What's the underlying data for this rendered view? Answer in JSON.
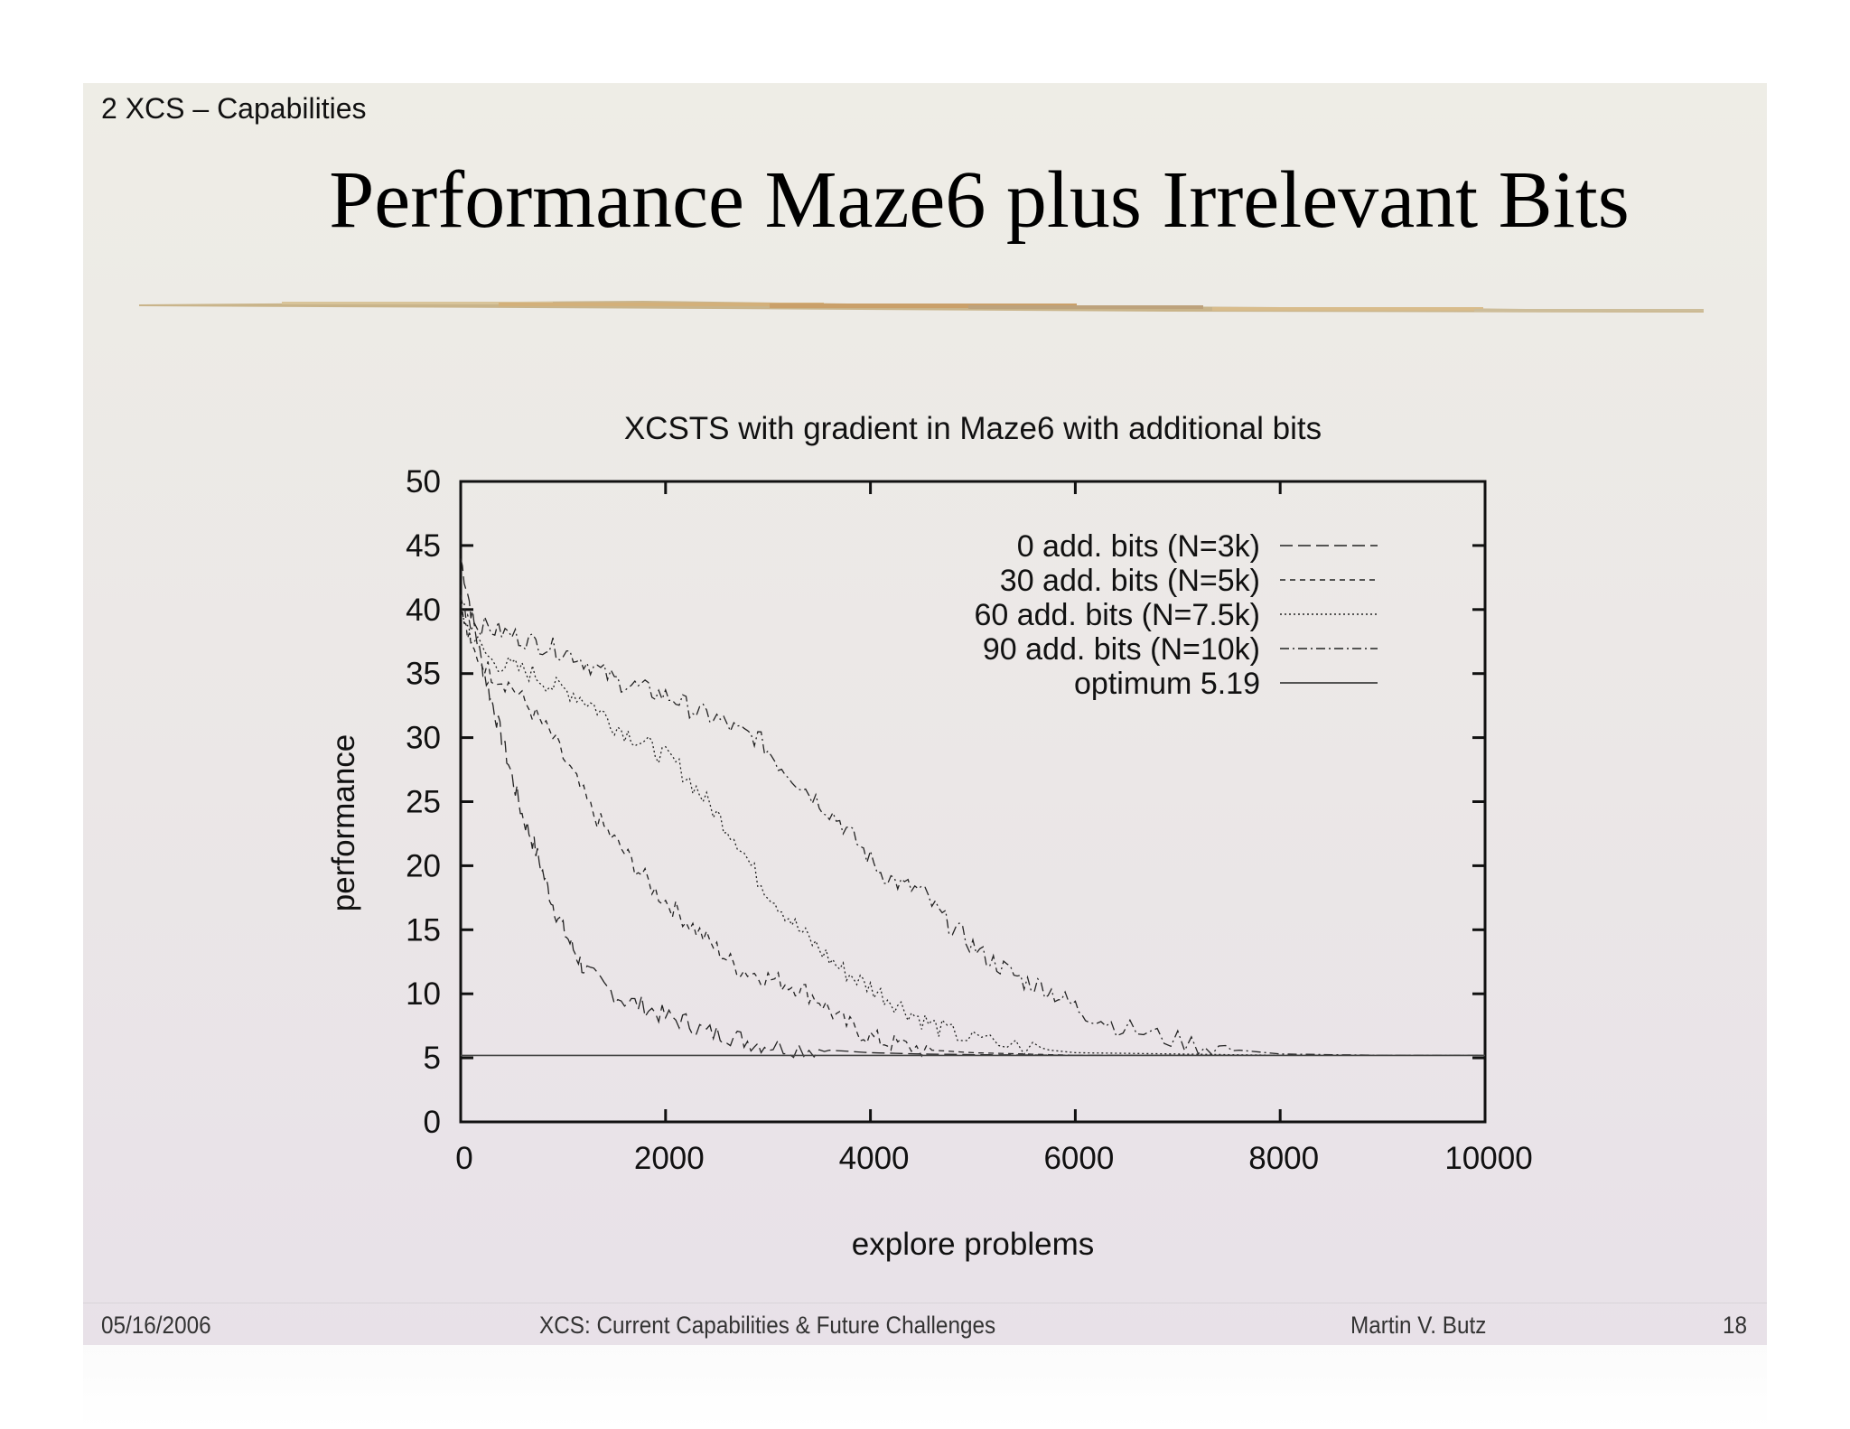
{
  "slide": {
    "section": "2 XCS – Capabilities",
    "title": "Performance Maze6 plus Irrelevant Bits",
    "footer": {
      "date": "05/16/2006",
      "center": "XCS: Current Capabilities & Future Challenges",
      "author": "Martin V. Butz",
      "page": "18"
    }
  },
  "colors": {
    "accent": "#c8a060",
    "line": "#222222"
  },
  "chart_data": {
    "type": "line",
    "title": "XCSTS with gradient in Maze6 with additional bits",
    "xlabel": "explore problems",
    "ylabel": "performance",
    "xlim": [
      0,
      10000
    ],
    "ylim": [
      0,
      50
    ],
    "xticks": [
      0,
      2000,
      4000,
      6000,
      8000,
      10000
    ],
    "yticks": [
      0,
      5,
      10,
      15,
      20,
      25,
      30,
      35,
      40,
      45,
      50
    ],
    "legend_position": "top-right",
    "series": [
      {
        "name": "0 add. bits (N=3k)",
        "dash": "14,6",
        "x": [
          0,
          100,
          200,
          300,
          400,
          500,
          600,
          700,
          800,
          900,
          1000,
          1100,
          1200,
          1400,
          1600,
          1800,
          2000,
          2200,
          2400,
          2600,
          2800,
          3000,
          3300,
          3600,
          4000,
          4500,
          5000,
          6000,
          7000,
          8000,
          9000,
          10000
        ],
        "y": [
          44,
          40,
          36,
          33,
          30,
          27,
          24,
          22,
          19.5,
          17,
          15,
          13.5,
          12,
          10.5,
          9.5,
          9,
          8.2,
          7.8,
          7,
          6.8,
          6.3,
          6,
          5.8,
          5.6,
          5.4,
          5.3,
          5.25,
          5.2,
          5.2,
          5.19,
          5.19,
          5.19
        ]
      },
      {
        "name": "30 add. bits (N=5k)",
        "dash": "6,5",
        "x": [
          0,
          100,
          300,
          500,
          700,
          900,
          1100,
          1300,
          1500,
          1700,
          1900,
          2100,
          2300,
          2500,
          2700,
          2900,
          3100,
          3300,
          3500,
          3700,
          3900,
          4100,
          4300,
          4600,
          5000,
          5500,
          6000,
          7000,
          8000,
          10000
        ],
        "y": [
          40,
          37,
          35,
          34,
          32,
          30,
          27,
          24,
          22,
          20,
          18,
          16.5,
          15,
          13.5,
          12,
          11.5,
          11,
          10.5,
          9.5,
          8,
          7,
          6.3,
          6,
          5.6,
          5.4,
          5.3,
          5.2,
          5.2,
          5.19,
          5.19
        ]
      },
      {
        "name": "60 add. bits (N=7.5k)",
        "dash": "2,3",
        "x": [
          0,
          100,
          300,
          500,
          700,
          900,
          1100,
          1300,
          1500,
          1700,
          1900,
          2100,
          2300,
          2500,
          2700,
          2900,
          3100,
          3300,
          3500,
          3700,
          3900,
          4100,
          4300,
          4500,
          4700,
          5000,
          5500,
          6000,
          7000,
          8000,
          10000
        ],
        "y": [
          40,
          38,
          36,
          35.5,
          35,
          34,
          33.5,
          32.5,
          31,
          30,
          29,
          28,
          26,
          24,
          22,
          19,
          17,
          15,
          13.5,
          12,
          11,
          10,
          9,
          8,
          7.2,
          6.4,
          5.8,
          5.4,
          5.3,
          5.2,
          5.19
        ]
      },
      {
        "name": "90 add. bits (N=10k)",
        "dash": "10,4,2,4",
        "x": [
          0,
          100,
          300,
          500,
          700,
          900,
          1100,
          1300,
          1500,
          1700,
          1900,
          2100,
          2300,
          2500,
          2700,
          2900,
          3100,
          3300,
          3500,
          3700,
          3900,
          4100,
          4300,
          4500,
          4700,
          4900,
          5100,
          5300,
          5500,
          5700,
          5900,
          6100,
          6400,
          6800,
          7200,
          7600,
          8000,
          9000,
          10000
        ],
        "y": [
          41,
          39,
          38.5,
          38,
          37.5,
          37,
          36.5,
          35.5,
          34.5,
          34,
          33.5,
          33,
          32,
          31.5,
          30.5,
          30,
          28,
          26.5,
          25,
          23.5,
          21.5,
          19.5,
          18.5,
          18,
          16,
          14.5,
          13,
          12,
          11,
          10.5,
          9.5,
          8.5,
          7.5,
          6.7,
          6,
          5.6,
          5.3,
          5.2,
          5.19
        ]
      },
      {
        "name": "optimum 5.19",
        "dash": "",
        "x": [
          0,
          10000
        ],
        "y": [
          5.19,
          5.19
        ]
      }
    ]
  }
}
